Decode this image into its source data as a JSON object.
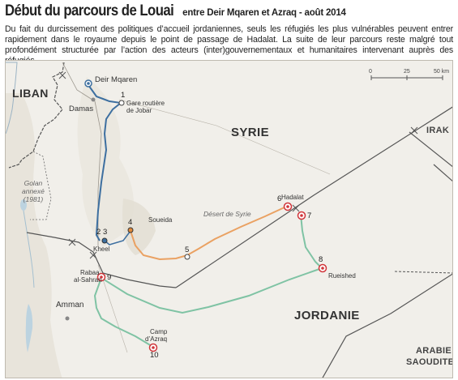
{
  "header": {
    "title": "Début du parcours de Louai",
    "subtitle": "entre Deir Mqaren et Azraq - août 2014",
    "intro": "Du fait du durcissement des politiques d’accueil jordaniennes, seuls les réfugiés les plus vulnérables peuvent entrer rapidement dans le royaume depuis le point de passage de Hadalat. La suite de leur parcours reste malgré tout profondément structurée par l’action des acteurs (inter)gouvernementaux et humanitaires intervenant auprès des réfugiés."
  },
  "map": {
    "countries": {
      "liban": "LIBAN",
      "syrie": "SYRIE",
      "irak": "IRAK",
      "jordanie": "JORDANIE",
      "arabie_1": "ARABIE",
      "arabie_2": "SAOUDITE"
    },
    "places": {
      "deir_mqaren": "Deir Mqaren",
      "damas": "Damas",
      "jobar_1": "Gare routière",
      "jobar_2": "de Jobar",
      "soueida": "Soueida",
      "kheel": "Kheel",
      "rabaa_1": "Rabaa",
      "rabaa_2": "al-Sahran",
      "hadalat": "Hadalat",
      "rueished": "Rueished",
      "amman": "Amman",
      "azraq_1": "Camp",
      "azraq_2": "d’Azraq"
    },
    "golan": [
      "Golan",
      "annexé",
      "(1981)"
    ],
    "desert": "Désert de Syrie",
    "steps": [
      "1",
      "2",
      "3",
      "4",
      "5",
      "6",
      "7",
      "8",
      "9",
      "10"
    ],
    "scale": {
      "ticks": [
        "0",
        "25",
        "50 km"
      ]
    },
    "colors": {
      "syria_route": "#3d6fa0",
      "smuggler_route": "#eaa162",
      "jordan_route": "#7fc3a4",
      "camp_marker": "#d1353a",
      "soueida_marker": "#e08a3c",
      "borders": "#555555",
      "background": "#f1efea"
    }
  }
}
